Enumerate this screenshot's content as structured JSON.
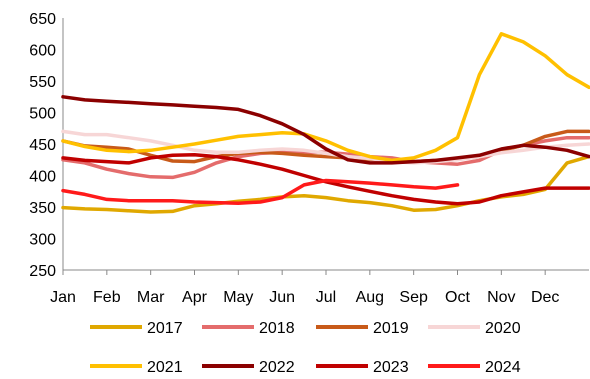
{
  "chart_data": {
    "type": "line",
    "title": "",
    "xlabel": "",
    "ylabel": "",
    "categories": [
      "Jan",
      "Feb",
      "Mar",
      "Apr",
      "May",
      "Jun",
      "Jul",
      "Aug",
      "Sep",
      "Oct",
      "Nov",
      "Dec"
    ],
    "y_ticks": [
      "650",
      "600",
      "550",
      "500",
      "450",
      "400",
      "350",
      "300",
      "250"
    ],
    "ylim": [
      250,
      650
    ],
    "xlim": [
      0,
      12
    ],
    "grid": false,
    "legend_position": "bottom",
    "series": [
      {
        "name": "2017",
        "color": "#e0a800",
        "width": 3.5,
        "x": [
          0,
          0.5,
          1,
          1.5,
          2,
          2.5,
          3,
          3.5,
          4,
          4.5,
          5,
          5.5,
          6,
          6.5,
          7,
          7.5,
          8,
          8.5,
          9,
          9.5,
          10,
          10.5,
          11,
          11.5,
          12
        ],
        "y": [
          349,
          347,
          346,
          344,
          342,
          343,
          352,
          355,
          359,
          362,
          366,
          368,
          365,
          360,
          357,
          352,
          345,
          346,
          352,
          360,
          366,
          370,
          378,
          420,
          430
        ]
      },
      {
        "name": "2018",
        "color": "#e46c6c",
        "width": 3.5,
        "x": [
          0,
          0.5,
          1,
          1.5,
          2,
          2.5,
          3,
          3.5,
          4,
          4.5,
          5,
          5.5,
          6,
          6.5,
          7,
          7.5,
          8,
          8.5,
          9,
          9.5,
          10,
          10.5,
          11,
          11.5,
          12
        ],
        "y": [
          425,
          420,
          410,
          403,
          398,
          397,
          405,
          420,
          430,
          435,
          437,
          437,
          437,
          434,
          430,
          428,
          422,
          420,
          418,
          424,
          440,
          448,
          455,
          460,
          460
        ]
      },
      {
        "name": "2019",
        "color": "#c85a19",
        "width": 3.5,
        "x": [
          0,
          0.5,
          1,
          1.5,
          2,
          2.5,
          3,
          3.5,
          4,
          4.5,
          5,
          5.5,
          6,
          6.5,
          7,
          7.5,
          8,
          8.5,
          9,
          9.5,
          10,
          10.5,
          11,
          11.5,
          12
        ],
        "y": [
          455,
          447,
          445,
          442,
          432,
          423,
          422,
          430,
          435,
          437,
          435,
          432,
          430,
          428,
          426,
          424,
          422,
          424,
          426,
          430,
          440,
          448,
          462,
          470,
          470
        ]
      },
      {
        "name": "2020",
        "color": "#f7d6d6",
        "width": 3.5,
        "x": [
          0,
          0.5,
          1,
          1.5,
          2,
          2.5,
          3,
          3.5,
          4,
          4.5,
          5,
          5.5,
          6,
          6.5,
          7,
          7.5,
          8,
          8.5,
          9,
          9.5,
          10,
          10.5,
          11,
          11.5,
          12
        ],
        "y": [
          470,
          465,
          465,
          460,
          455,
          448,
          440,
          437,
          437,
          440,
          442,
          440,
          435,
          430,
          427,
          422,
          420,
          422,
          425,
          430,
          436,
          440,
          445,
          448,
          450
        ]
      },
      {
        "name": "2021",
        "color": "#ffc000",
        "width": 3.5,
        "x": [
          0,
          0.5,
          1,
          1.5,
          2,
          2.5,
          3,
          3.5,
          4,
          4.5,
          5,
          5.5,
          6,
          6.5,
          7,
          7.5,
          8,
          8.5,
          9,
          9.5,
          10,
          10.5,
          11,
          11.5,
          12
        ],
        "y": [
          455,
          446,
          440,
          438,
          440,
          445,
          450,
          456,
          462,
          465,
          468,
          466,
          455,
          440,
          430,
          424,
          428,
          440,
          460,
          560,
          625,
          612,
          590,
          560,
          540
        ]
      },
      {
        "name": "2022",
        "color": "#8b0000",
        "width": 3.5,
        "x": [
          0,
          0.5,
          1,
          1.5,
          2,
          2.5,
          3,
          3.5,
          4,
          4.5,
          5,
          5.5,
          6,
          6.5,
          7,
          7.5,
          8,
          8.5,
          9,
          9.5,
          10,
          10.5,
          11,
          11.5,
          12
        ],
        "y": [
          525,
          520,
          518,
          516,
          514,
          512,
          510,
          508,
          505,
          495,
          482,
          465,
          442,
          425,
          420,
          420,
          422,
          424,
          428,
          432,
          442,
          448,
          445,
          440,
          430
        ]
      },
      {
        "name": "2023",
        "color": "#c00000",
        "width": 3.5,
        "x": [
          0,
          0.5,
          1,
          1.5,
          2,
          2.5,
          3,
          3.5,
          4,
          4.5,
          5,
          5.5,
          6,
          6.5,
          7,
          7.5,
          8,
          8.5,
          9,
          9.5,
          10,
          10.5,
          11,
          11.5,
          12
        ],
        "y": [
          428,
          424,
          422,
          420,
          428,
          432,
          433,
          430,
          425,
          418,
          410,
          400,
          390,
          382,
          375,
          368,
          362,
          358,
          355,
          358,
          368,
          374,
          380,
          380,
          380
        ]
      },
      {
        "name": "2024",
        "color": "#ff1a1a",
        "width": 3.5,
        "x": [
          0,
          0.5,
          1,
          1.5,
          2,
          2.5,
          3,
          3.5,
          4,
          4.5,
          5,
          5.5,
          6,
          6.5,
          7,
          7.5,
          8,
          8.5,
          9
        ],
        "y": [
          376,
          370,
          362,
          360,
          360,
          360,
          358,
          357,
          356,
          358,
          365,
          385,
          392,
          390,
          388,
          385,
          382,
          380,
          385
        ]
      }
    ]
  }
}
